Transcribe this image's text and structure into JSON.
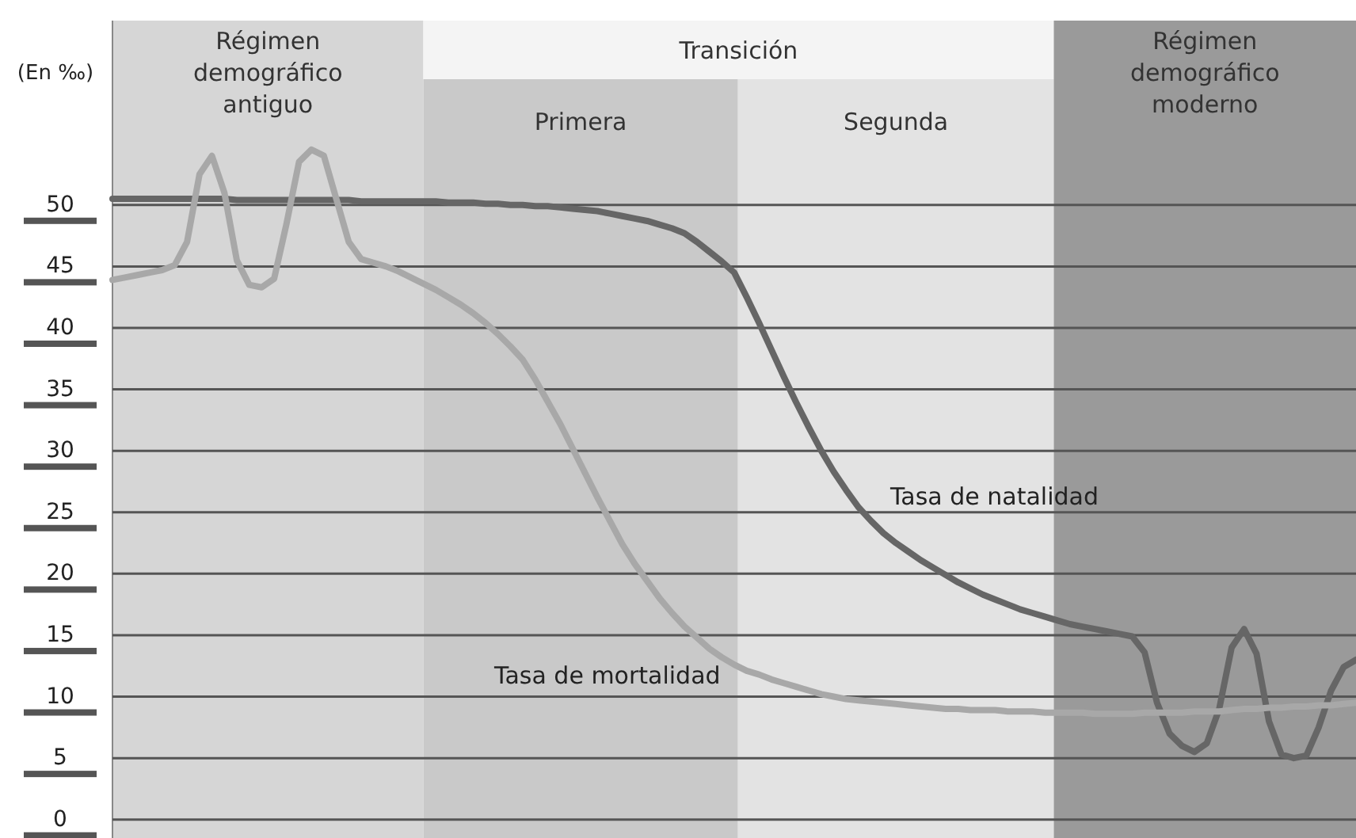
{
  "chart_data": {
    "type": "line",
    "ylabel": "(En ‰)",
    "ylim": [
      -1.5,
      65
    ],
    "yticks": [
      0,
      5,
      10,
      15,
      20,
      25,
      30,
      35,
      40,
      45,
      50
    ],
    "tick_labels": "y",
    "grid": "y",
    "marker": "none",
    "line_style": "solid",
    "annotations": [
      "Régimen demográfico antiguo",
      "Transición",
      "Primera",
      "Segunda",
      "Régimen demográfico moderno"
    ],
    "categories": [
      null,
      null,
      null,
      null,
      null,
      null,
      null,
      null,
      null,
      null,
      null,
      null,
      null,
      null,
      null,
      null,
      null,
      null,
      null,
      null,
      null,
      null,
      null,
      null,
      null,
      null,
      null,
      null,
      null,
      null,
      null,
      null,
      null,
      null,
      null,
      null,
      null,
      null,
      null,
      null,
      null,
      null,
      null,
      null,
      null,
      null,
      null,
      null,
      null,
      null,
      null,
      null,
      null,
      null,
      null,
      null,
      null,
      null,
      null,
      null,
      null,
      null,
      null,
      null,
      null,
      null,
      null,
      null,
      null,
      null,
      null,
      null,
      null,
      null,
      null,
      null,
      null,
      null,
      null,
      null,
      null,
      null,
      null,
      null,
      null,
      null,
      null,
      null,
      null,
      null,
      null,
      null,
      null,
      null,
      null,
      null,
      null,
      null,
      null,
      null,
      null
    ],
    "series": [
      {
        "name": "Tasa de natalidad",
        "color": "#666666",
        "values": [
          50.5,
          50.5,
          50.5,
          50.5,
          50.5,
          50.5,
          50.5,
          50.5,
          50.5,
          50.5,
          50.4,
          50.4,
          50.4,
          50.4,
          50.4,
          50.4,
          50.4,
          50.4,
          50.4,
          50.4,
          50.3,
          50.3,
          50.3,
          50.3,
          50.3,
          50.3,
          50.3,
          50.2,
          50.2,
          50.2,
          50.1,
          50.1,
          50.0,
          50.0,
          49.9,
          49.9,
          49.8,
          49.7,
          49.6,
          49.5,
          49.3,
          49.1,
          48.9,
          48.7,
          48.4,
          48.1,
          47.7,
          47.0,
          46.2,
          45.4,
          44.5,
          42.5,
          40.4,
          38.2,
          36.0,
          33.9,
          31.9,
          30.0,
          28.3,
          26.8,
          25.4,
          24.3,
          23.3,
          22.5,
          21.8,
          21.1,
          20.5,
          19.9,
          19.3,
          18.8,
          18.3,
          17.9,
          17.5,
          17.1,
          16.8,
          16.5,
          16.2,
          15.9,
          15.7,
          15.5,
          15.3,
          15.1,
          14.9,
          13.6,
          9.5,
          7.0,
          6.0,
          5.5,
          6.2,
          9.0,
          14.0,
          15.5,
          13.5,
          8.0,
          5.3,
          5.0,
          5.2,
          7.5,
          10.5,
          12.4,
          13
        ]
      },
      {
        "name": "Tasa de mortalidad",
        "color": "#a8a8a8",
        "values": [
          43.9,
          44.1,
          44.3,
          44.5,
          44.7,
          45.1,
          47,
          52.5,
          54,
          51,
          45.5,
          43.5,
          43.3,
          44,
          48.5,
          53.5,
          54.5,
          54,
          50.5,
          47,
          45.6,
          45.3,
          45,
          44.6,
          44.1,
          43.6,
          43.1,
          42.5,
          41.9,
          41.2,
          40.4,
          39.5,
          38.5,
          37.4,
          35.8,
          34.0,
          32.2,
          30.2,
          28.2,
          26.2,
          24.3,
          22.4,
          20.8,
          19.4,
          18.0,
          16.8,
          15.7,
          14.8,
          13.9,
          13.2,
          12.6,
          12.1,
          11.8,
          11.4,
          11.1,
          10.8,
          10.5,
          10.2,
          10.0,
          9.8,
          9.7,
          9.6,
          9.5,
          9.4,
          9.3,
          9.2,
          9.1,
          9.0,
          9.0,
          8.9,
          8.9,
          8.9,
          8.8,
          8.8,
          8.8,
          8.7,
          8.7,
          8.7,
          8.7,
          8.6,
          8.6,
          8.6,
          8.6,
          8.7,
          8.7,
          8.7,
          8.7,
          8.8,
          8.8,
          8.8,
          8.9,
          9.0,
          9.0,
          9.1,
          9.1,
          9.2,
          9.2,
          9.3,
          9.3,
          9.4,
          9.5
        ]
      }
    ]
  }
}
